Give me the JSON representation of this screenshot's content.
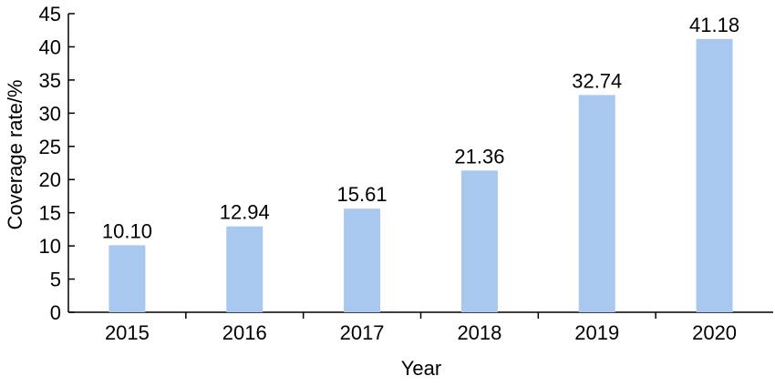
{
  "chart_data": {
    "type": "bar",
    "categories": [
      "2015",
      "2016",
      "2017",
      "2018",
      "2019",
      "2020"
    ],
    "values": [
      10.1,
      12.94,
      15.61,
      21.36,
      32.74,
      41.18
    ],
    "data_labels": [
      "10.10",
      "12.94",
      "15.61",
      "21.36",
      "32.74",
      "41.18"
    ],
    "xlabel": "Year",
    "ylabel": "Coverage rate/%",
    "ylim": [
      0,
      45
    ],
    "yticks": [
      0,
      5,
      10,
      15,
      20,
      25,
      30,
      35,
      40,
      45
    ],
    "grid": false,
    "bar_color": "#a9c8ef"
  }
}
